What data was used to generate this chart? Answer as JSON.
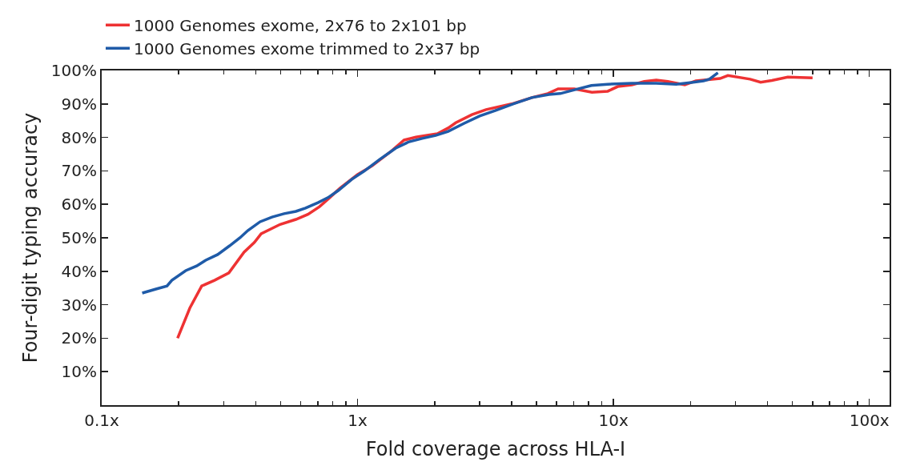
{
  "chart_data": {
    "type": "line",
    "xlabel": "Fold coverage across HLA-I",
    "ylabel": "Four-digit typing accuracy",
    "log": "x",
    "grid": false,
    "legend": "top left",
    "marker": "none",
    "line_style": "solid",
    "xlim": [
      0.1,
      120
    ],
    "xticks": [
      {
        "value": 0.1,
        "label": "0.1x"
      },
      {
        "value": 1,
        "label": "1x"
      },
      {
        "value": 10,
        "label": "10x"
      },
      {
        "value": 100,
        "label": "100x"
      }
    ],
    "ylim": [
      0,
      100
    ],
    "yticks": [
      {
        "value": 10,
        "label": "10%"
      },
      {
        "value": 20,
        "label": "20%"
      },
      {
        "value": 30,
        "label": "30%"
      },
      {
        "value": 40,
        "label": "40%"
      },
      {
        "value": 50,
        "label": "50%"
      },
      {
        "value": 60,
        "label": "60%"
      },
      {
        "value": 70,
        "label": "70%"
      },
      {
        "value": 80,
        "label": "80%"
      },
      {
        "value": 90,
        "label": "90%"
      },
      {
        "value": 100,
        "label": "100%"
      }
    ],
    "series": [
      {
        "name": "1000 Genomes exome, 2x76 to 2x101 bp",
        "color": "#ee3233",
        "x": [
          0.198,
          0.221,
          0.246,
          0.276,
          0.314,
          0.36,
          0.395,
          0.42,
          0.498,
          0.574,
          0.64,
          0.71,
          0.778,
          0.853,
          1.0,
          1.14,
          1.34,
          1.52,
          1.69,
          2.05,
          2.26,
          2.42,
          2.8,
          3.18,
          4.0,
          4.8,
          5.54,
          6.08,
          7.03,
          8.24,
          9.5,
          10.4,
          11.8,
          13.2,
          14.7,
          16.3,
          19.0,
          21,
          26.1,
          28,
          34.2,
          37.6,
          41.6,
          48,
          60
        ],
        "values": [
          20,
          29,
          35.6,
          37.3,
          39.5,
          45.7,
          48.6,
          51.2,
          54,
          55.5,
          57,
          59.3,
          62,
          64.8,
          68.9,
          71.5,
          75.6,
          79.2,
          80.1,
          81.1,
          82.8,
          84.4,
          86.8,
          88.3,
          90,
          91.9,
          93.1,
          94.5,
          94.5,
          93.5,
          93.8,
          95.2,
          95.7,
          96.7,
          97.1,
          96.7,
          95.7,
          96.9,
          97.6,
          98.5,
          97.4,
          96.5,
          97,
          98,
          97.8
        ]
      },
      {
        "name": "1000 Genomes exome trimmed to 2x37 bp",
        "color": "#1f5ba8",
        "x": [
          0.144,
          0.163,
          0.18,
          0.188,
          0.213,
          0.235,
          0.255,
          0.284,
          0.316,
          0.347,
          0.373,
          0.416,
          0.463,
          0.516,
          0.574,
          0.626,
          0.7,
          0.766,
          0.84,
          0.95,
          1.06,
          1.22,
          1.41,
          1.59,
          1.79,
          2.02,
          2.26,
          2.61,
          3.0,
          3.45,
          4.05,
          4.8,
          5.6,
          6.2,
          7.1,
          8.2,
          9.5,
          11.8,
          14.7,
          17.6,
          20.2,
          22.5,
          23.7,
          25.6
        ],
        "values": [
          33.5,
          34.7,
          35.6,
          37.3,
          40.2,
          41.6,
          43.3,
          45,
          47.6,
          50,
          52.2,
          54.8,
          56.2,
          57.2,
          57.9,
          58.9,
          60.5,
          62,
          64.1,
          67.5,
          69.9,
          73.4,
          76.8,
          78.7,
          79.7,
          80.6,
          81.8,
          84.2,
          86.4,
          88,
          90,
          91.9,
          92.8,
          93.1,
          94.3,
          95.5,
          95.9,
          96.2,
          96.2,
          95.9,
          96.4,
          96.9,
          97.4,
          99.3
        ]
      }
    ]
  }
}
